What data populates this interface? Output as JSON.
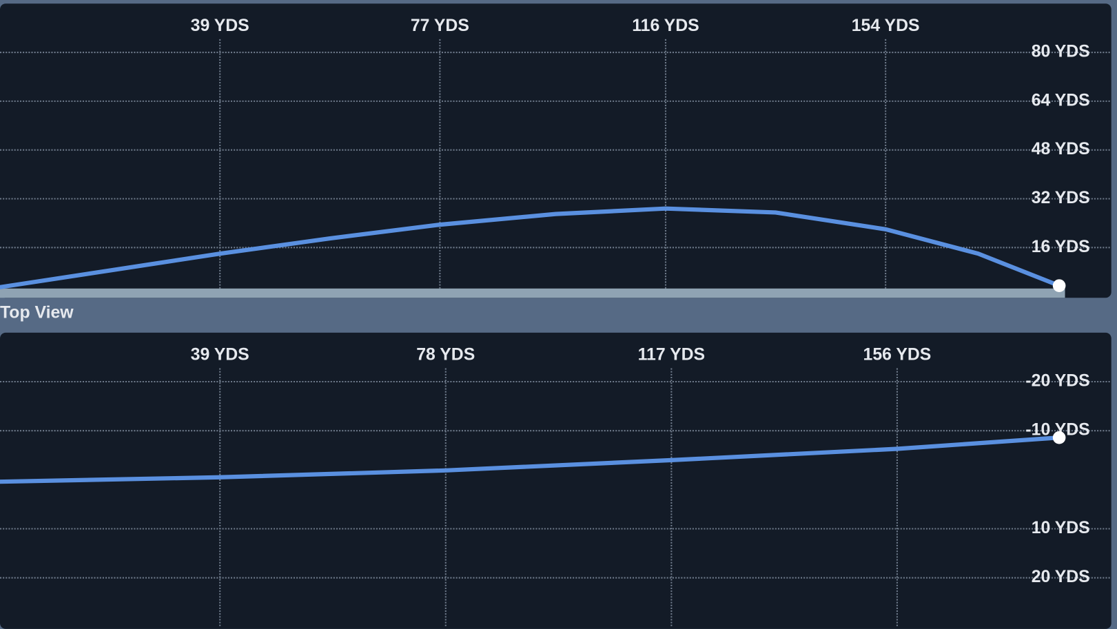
{
  "chart_data": [
    {
      "type": "line",
      "x": [
        1,
        20,
        39,
        58,
        77,
        97,
        116,
        135,
        154,
        170,
        184
      ],
      "series": [
        {
          "color": "#5a90e0",
          "values": [
            3,
            8.5,
            14,
            19,
            23.5,
            27,
            28.8,
            27.5,
            22,
            14,
            3.5
          ]
        }
      ],
      "xlim": [
        1,
        193
      ],
      "xticks": [
        {
          "value": 39,
          "label": "39 YDS"
        },
        {
          "value": 77,
          "label": "77 YDS"
        },
        {
          "value": 116,
          "label": "116 YDS"
        },
        {
          "value": 154,
          "label": "154 YDS"
        }
      ],
      "ylim": [
        0,
        96
      ],
      "yticks": [
        {
          "value": 16,
          "label": "16 YDS"
        },
        {
          "value": 32,
          "label": "32 YDS"
        },
        {
          "value": 48,
          "label": "48 YDS"
        },
        {
          "value": 64,
          "label": "64 YDS"
        },
        {
          "value": 80,
          "label": "80 YDS"
        }
      ],
      "grid": true
    },
    {
      "type": "line",
      "title": "Top View",
      "x": [
        1,
        39,
        78,
        117,
        156,
        184
      ],
      "series": [
        {
          "color": "#5a90e0",
          "values": [
            0.4,
            -0.5,
            -1.9,
            -4,
            -6.3,
            -8.6
          ]
        }
      ],
      "xlim": [
        1,
        193
      ],
      "xticks": [
        {
          "value": 39,
          "label": "39 YDS"
        },
        {
          "value": 78,
          "label": "78 YDS"
        },
        {
          "value": 117,
          "label": "117 YDS"
        },
        {
          "value": 156,
          "label": "156 YDS"
        }
      ],
      "ylim": [
        30,
        -30
      ],
      "yticks": [
        {
          "value": -20,
          "label": "-20 YDS"
        },
        {
          "value": -10,
          "label": "-10 YDS"
        },
        {
          "value": 10,
          "label": "10 YDS"
        },
        {
          "value": 20,
          "label": "20 YDS"
        }
      ],
      "grid": true
    }
  ]
}
